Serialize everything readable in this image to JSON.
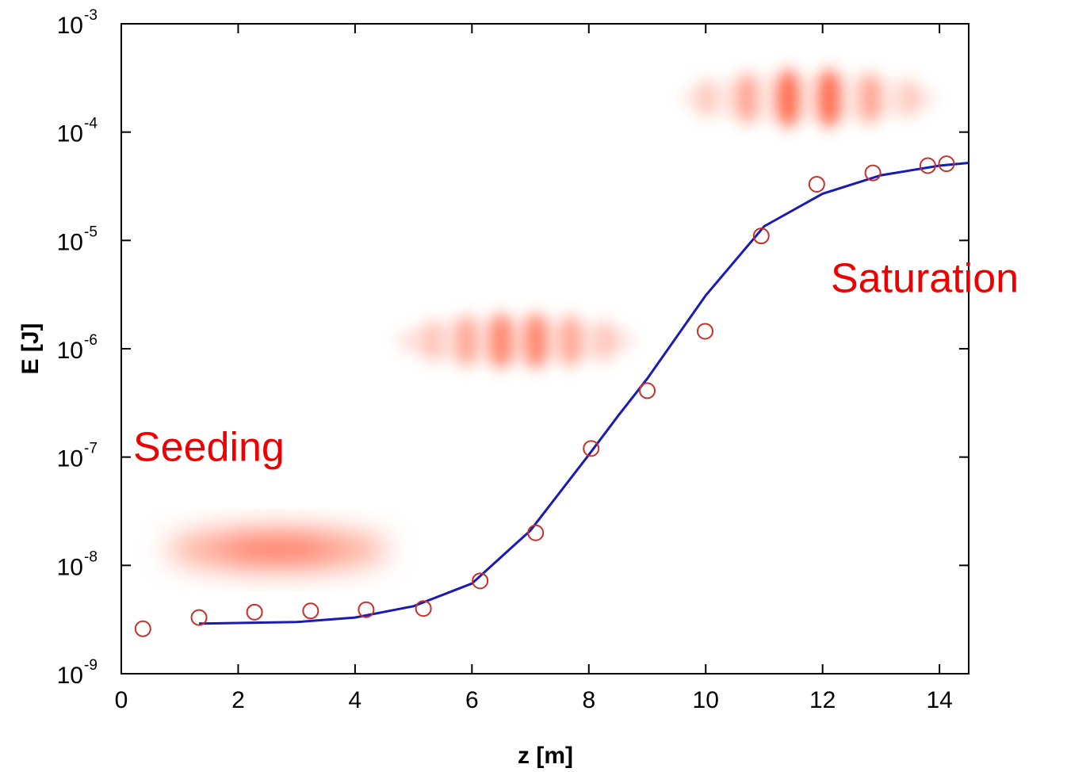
{
  "chart_data": {
    "type": "scatter-line",
    "x_label": "z  [m]",
    "y_label": "E  [J]",
    "annotations": [
      "Seeding",
      "Saturation"
    ],
    "xlim": [
      0,
      14.5
    ],
    "xticks": [
      0,
      2,
      4,
      6,
      8,
      10,
      12,
      14
    ],
    "ylim": [
      1e-09,
      0.001
    ],
    "yscale": "log",
    "yticks": [
      {
        "value": 1e-09,
        "label": "10",
        "exponent": "-9"
      },
      {
        "value": 1e-08,
        "label": "10",
        "exponent": "-8"
      },
      {
        "value": 1e-07,
        "label": "10",
        "exponent": "-7"
      },
      {
        "value": 1e-06,
        "label": "10",
        "exponent": "-6"
      },
      {
        "value": 1e-05,
        "label": "10",
        "exponent": "-5"
      },
      {
        "value": 0.0001,
        "label": "10",
        "exponent": "-4"
      },
      {
        "value": 0.001,
        "label": "10",
        "exponent": "-3"
      }
    ],
    "points": {
      "color": "#c8302a",
      "x": [
        0.37,
        1.33,
        2.28,
        3.24,
        4.19,
        5.17,
        6.14,
        7.09,
        8.04,
        9.0,
        9.99,
        10.95,
        11.9,
        12.86,
        13.8,
        14.12
      ],
      "values": [
        2.6e-09,
        3.3e-09,
        3.7e-09,
        3.8e-09,
        3.9e-09,
        4e-09,
        7.2e-09,
        2e-08,
        1.2e-07,
        4.1e-07,
        1.45e-06,
        1.1e-05,
        3.3e-05,
        4.2e-05,
        4.9e-05,
        5.1e-05
      ]
    },
    "curve": {
      "color": "#1a1ab4",
      "x": [
        1.33,
        3,
        4,
        5,
        6,
        7,
        8,
        8.5,
        9,
        10,
        11,
        12,
        13,
        14,
        14.5
      ],
      "values": [
        2.9e-09,
        3e-09,
        3.3e-09,
        4.2e-09,
        6.8e-09,
        2.1e-08,
        1.05e-07,
        2.4e-07,
        5.3e-07,
        3.1e-06,
        1.35e-05,
        2.7e-05,
        4e-05,
        4.9e-05,
        5.2e-05
      ]
    }
  }
}
